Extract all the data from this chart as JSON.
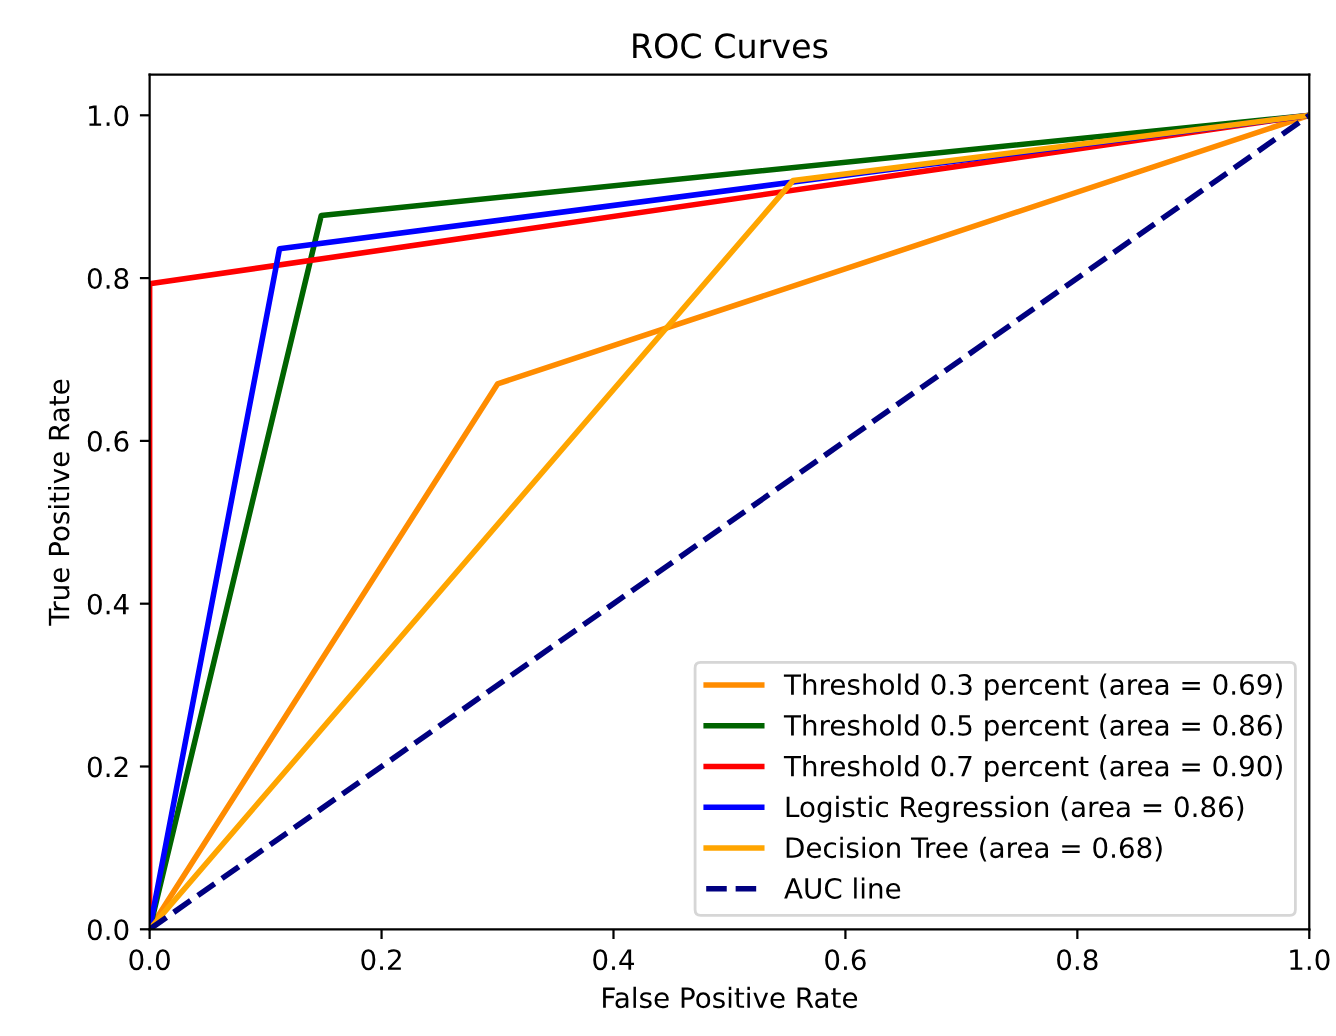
{
  "chart_data": {
    "type": "line",
    "title": "ROC Curves",
    "xlabel": "False Positive Rate",
    "ylabel": "True Positive Rate",
    "xlim": [
      0,
      1
    ],
    "ylim": [
      0,
      1.05
    ],
    "xticks": [
      {
        "value": 0,
        "label": "0.0"
      },
      0.2,
      0.4,
      0.6,
      0.8,
      {
        "value": 1,
        "label": "1.0"
      }
    ],
    "yticks": [
      {
        "value": 0,
        "label": "0.0"
      },
      0.2,
      0.4,
      0.6,
      0.8,
      {
        "value": 1,
        "label": "1.0"
      }
    ],
    "legend": "bottom right",
    "grid": false,
    "series": [
      {
        "name": "Threshold 0.3 percent (area = 0.69)",
        "color": "#ff8c00",
        "x": [
          0,
          0.3,
          1
        ],
        "values": [
          0,
          0.67,
          1
        ]
      },
      {
        "name": "Threshold 0.5 percent (area = 0.86)",
        "color": "#006400",
        "x": [
          0,
          0.148,
          1
        ],
        "values": [
          0,
          0.877,
          1
        ]
      },
      {
        "name": "Threshold 0.7 percent (area = 0.90)",
        "color": "#ff0000",
        "x": [
          0,
          0,
          1
        ],
        "values": [
          0,
          0.793,
          1
        ]
      },
      {
        "name": "Logistic Regression (area = 0.86)",
        "color": "#0000ff",
        "x": [
          0,
          0.112,
          0.555,
          1
        ],
        "values": [
          0,
          0.836,
          0.918,
          1
        ]
      },
      {
        "name": "Decision Tree (area = 0.68)",
        "color": "#ffa500",
        "x": [
          0,
          0.555,
          1
        ],
        "values": [
          0,
          0.92,
          1
        ]
      },
      {
        "name": "AUC line",
        "color": "#000080",
        "line_style": "dashed",
        "x": [
          0,
          1
        ],
        "values": [
          0,
          1
        ]
      }
    ]
  }
}
